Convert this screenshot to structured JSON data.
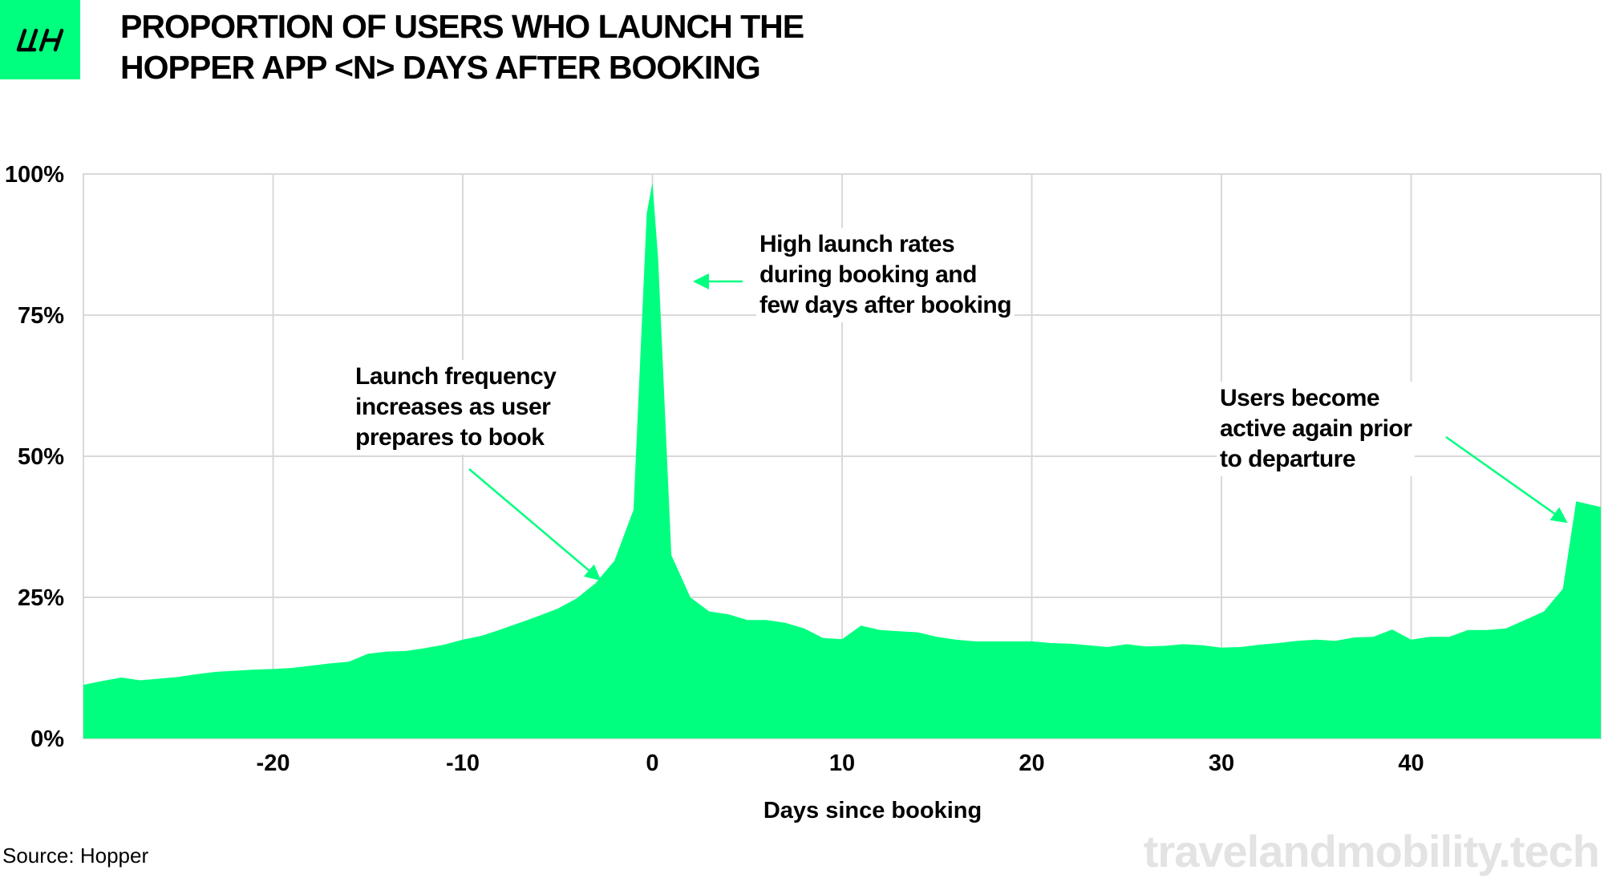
{
  "header": {
    "title_line1": "PROPORTION OF USERS WHO LAUNCH THE",
    "title_line2": "HOPPER APP <N> DAYS AFTER BOOKING",
    "logo_icon": "lh-logo-icon"
  },
  "annotations": {
    "peak": [
      "High launch rates",
      "during booking and",
      "few days after booking"
    ],
    "pre": [
      "Launch frequency",
      "increases as user",
      "prepares to book"
    ],
    "departure": [
      "Users become",
      "active again prior",
      "to departure"
    ]
  },
  "footer": {
    "source": "Source: Hopper",
    "watermark": "travelandmobility.tech"
  },
  "chart_data": {
    "type": "area",
    "xlabel": "Days since booking",
    "ylabel": "",
    "xlim": [
      -30,
      50
    ],
    "ylim": [
      0,
      100
    ],
    "x_ticks": [
      -20,
      -10,
      0,
      10,
      20,
      30,
      40
    ],
    "y_ticks": [
      0,
      25,
      50,
      75,
      100
    ],
    "y_tick_labels": [
      "0%",
      "25%",
      "50%",
      "75%",
      "100%"
    ],
    "grid": true,
    "fill_color": "#00ff7f",
    "grid_color": "#d9d9d9",
    "points": [
      [
        -30,
        9.5
      ],
      [
        -29,
        10.2
      ],
      [
        -28,
        10.8
      ],
      [
        -27,
        10.3
      ],
      [
        -26,
        10.6
      ],
      [
        -25,
        10.9
      ],
      [
        -24,
        11.4
      ],
      [
        -23,
        11.8
      ],
      [
        -22,
        12.0
      ],
      [
        -21,
        12.2
      ],
      [
        -20,
        12.3
      ],
      [
        -19,
        12.5
      ],
      [
        -18,
        12.9
      ],
      [
        -17,
        13.3
      ],
      [
        -16,
        13.6
      ],
      [
        -15,
        15.0
      ],
      [
        -14,
        15.4
      ],
      [
        -13,
        15.5
      ],
      [
        -12,
        16.0
      ],
      [
        -11,
        16.6
      ],
      [
        -10,
        17.5
      ],
      [
        -9,
        18.2
      ],
      [
        -8,
        19.3
      ],
      [
        -7,
        20.5
      ],
      [
        -6,
        21.7
      ],
      [
        -5,
        23.0
      ],
      [
        -4,
        24.8
      ],
      [
        -3,
        27.5
      ],
      [
        -2,
        31.5
      ],
      [
        -1,
        40.5
      ],
      [
        -0.3,
        93
      ],
      [
        0,
        98.5
      ],
      [
        0.3,
        85
      ],
      [
        1,
        32.5
      ],
      [
        2,
        25
      ],
      [
        3,
        22.5
      ],
      [
        4,
        22.0
      ],
      [
        5,
        21.0
      ],
      [
        6,
        21.0
      ],
      [
        7,
        20.5
      ],
      [
        8,
        19.5
      ],
      [
        9,
        17.8
      ],
      [
        10,
        17.6
      ],
      [
        11,
        20.0
      ],
      [
        12,
        19.2
      ],
      [
        13,
        19.0
      ],
      [
        14,
        18.8
      ],
      [
        15,
        18.0
      ],
      [
        16,
        17.5
      ],
      [
        17,
        17.2
      ],
      [
        18,
        17.2
      ],
      [
        19,
        17.2
      ],
      [
        20,
        17.2
      ],
      [
        21,
        16.9
      ],
      [
        22,
        16.8
      ],
      [
        23,
        16.5
      ],
      [
        24,
        16.2
      ],
      [
        25,
        16.7
      ],
      [
        26,
        16.3
      ],
      [
        27,
        16.4
      ],
      [
        28,
        16.7
      ],
      [
        29,
        16.5
      ],
      [
        30,
        16.1
      ],
      [
        31,
        16.2
      ],
      [
        32,
        16.6
      ],
      [
        33,
        16.9
      ],
      [
        34,
        17.3
      ],
      [
        35,
        17.5
      ],
      [
        36,
        17.3
      ],
      [
        37,
        17.9
      ],
      [
        38,
        18.0
      ],
      [
        39,
        19.3
      ],
      [
        40,
        17.5
      ],
      [
        41,
        18.0
      ],
      [
        42,
        18.0
      ],
      [
        43,
        19.2
      ],
      [
        44,
        19.2
      ],
      [
        45,
        19.5
      ],
      [
        46,
        21.0
      ],
      [
        47,
        22.5
      ],
      [
        48,
        26.5
      ],
      [
        48.7,
        42.0
      ],
      [
        50,
        41.0
      ]
    ]
  }
}
